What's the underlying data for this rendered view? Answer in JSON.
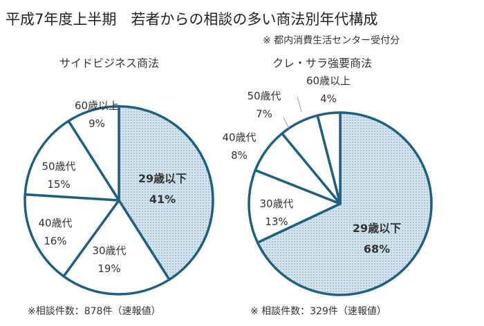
{
  "title": "平成7年度上半期　若者からの相談の多い商法別年代構成",
  "note": "※ 都内消費生活センター受付分",
  "colors": {
    "stroke": "#1f5f80",
    "highlight_fill": "#d3e4ee",
    "dot": "#8fb2c6",
    "other_fill": "#ffffff"
  },
  "chart_data": [
    {
      "type": "pie",
      "title": "サイドビジネス商法",
      "slices": [
        {
          "label": "29歳以下",
          "value": 41,
          "value_label": "41%"
        },
        {
          "label": "30歳代",
          "value": 19,
          "value_label": "19%"
        },
        {
          "label": "40歳代",
          "value": 16,
          "value_label": "16%"
        },
        {
          "label": "50歳代",
          "value": 15,
          "value_label": "15%"
        },
        {
          "label": "60歳以上",
          "value": 9,
          "value_label": "9%"
        }
      ],
      "footnote": "※相談件数：878件（速報値）"
    },
    {
      "type": "pie",
      "title": "クレ・サラ強要商法",
      "slices": [
        {
          "label": "29歳以下",
          "value": 68,
          "value_label": "68%"
        },
        {
          "label": "30歳代",
          "value": 13,
          "value_label": "13%"
        },
        {
          "label": "40歳代",
          "value": 8,
          "value_label": "8%"
        },
        {
          "label": "50歳代",
          "value": 7,
          "value_label": "7%"
        },
        {
          "label": "60歳以上",
          "value": 4,
          "value_label": "4%"
        }
      ],
      "footnote": "※ 相談件数：329件（速報値）"
    }
  ]
}
